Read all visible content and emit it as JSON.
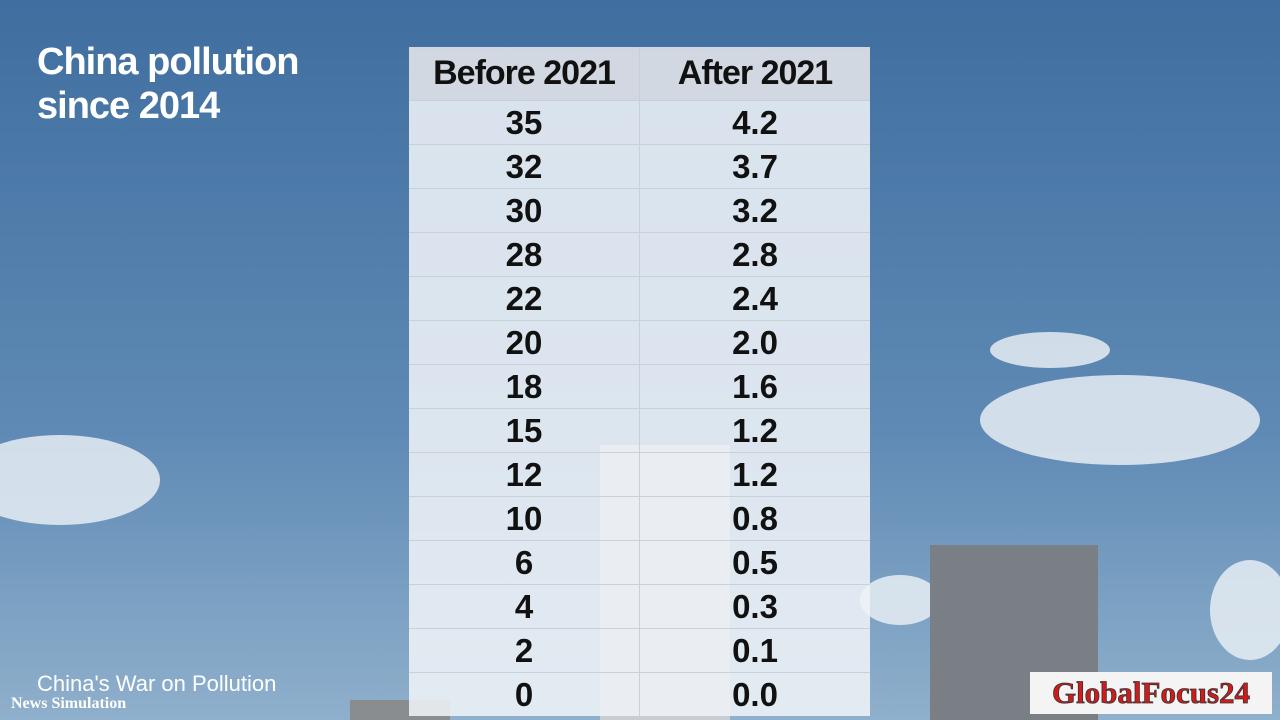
{
  "header": {
    "title_lines": [
      "China pollution",
      "since 2014"
    ]
  },
  "table": {
    "columns": [
      "Before 2021",
      "After 2021"
    ],
    "rows": [
      [
        "35",
        "4.2"
      ],
      [
        "32",
        "3.7"
      ],
      [
        "30",
        "3.2"
      ],
      [
        "28",
        "2.8"
      ],
      [
        "22",
        "2.4"
      ],
      [
        "20",
        "2.0"
      ],
      [
        "18",
        "1.6"
      ],
      [
        "15",
        "1.2"
      ],
      [
        "12",
        "1.2"
      ],
      [
        "10",
        "0.8"
      ],
      [
        "6",
        "0.5"
      ],
      [
        "4",
        "0.3"
      ],
      [
        "2",
        "0.1"
      ],
      [
        "0",
        "0.0"
      ]
    ]
  },
  "footer": {
    "caption": "China's War on Pollution",
    "credit": "News Simulation",
    "logo": "GlobalFocus24"
  }
}
